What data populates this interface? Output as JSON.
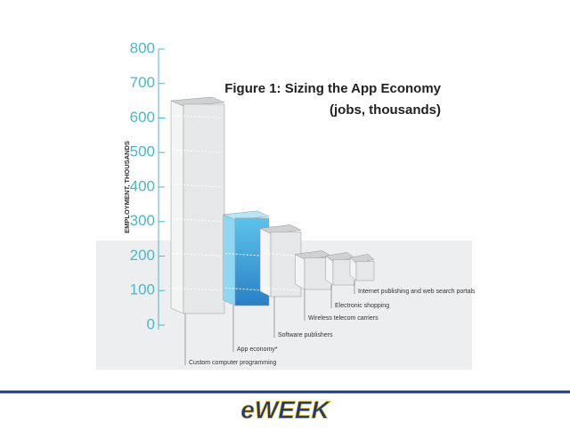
{
  "chart_data": {
    "type": "bar3d",
    "title": "Figure 1: Sizing the App Economy",
    "subtitle": "(jobs, thousands)",
    "y_label": "EMPLOYMENT, THOUSANDS",
    "categories": [
      "Custom computer programming",
      "App economy*",
      "Software publishers",
      "Wireless telecom carriers",
      "Electronic shopping",
      "Internet publishing and web search portals"
    ],
    "values": [
      640,
      310,
      270,
      195,
      190,
      185
    ],
    "color": "#e6e7e8",
    "highlight_color": "#3aa6dc",
    "highlight_index": 1,
    "ylim": [
      0,
      800
    ],
    "yticks": [
      0,
      100,
      200,
      300,
      400,
      500,
      600,
      700,
      800
    ]
  },
  "footer": {
    "logo": "eWEEK"
  }
}
